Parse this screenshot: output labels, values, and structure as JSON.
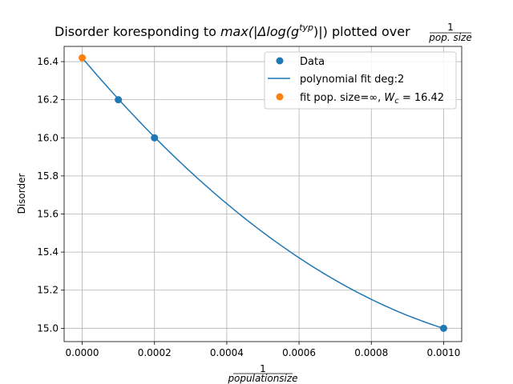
{
  "chart_data": {
    "type": "scatter",
    "title_prefix": "Disorder koresponding to ",
    "title_math": "max(|Δlog(g",
    "title_sup": "typ",
    "title_math_end": ")|)",
    "title_mid": " plotted over ",
    "title_frac_num": "1",
    "title_frac_den": "pop. size",
    "xlabel_num": "1",
    "xlabel_den": "populationsize",
    "ylabel": "Disorder",
    "xlim": [
      -5e-05,
      0.00105
    ],
    "ylim": [
      14.93,
      16.48
    ],
    "grid": true,
    "legend_position": "top-right",
    "x_ticks": [
      0.0,
      0.0002,
      0.0004,
      0.0006,
      0.0008,
      0.001
    ],
    "x_tick_labels": [
      "0.0000",
      "0.0002",
      "0.0004",
      "0.0006",
      "0.0008",
      "0.0010"
    ],
    "y_ticks": [
      15.0,
      15.2,
      15.4,
      15.6,
      15.8,
      16.0,
      16.2,
      16.4
    ],
    "y_tick_labels": [
      "15.0",
      "15.2",
      "15.4",
      "15.6",
      "15.8",
      "16.0",
      "16.2",
      "16.4"
    ],
    "series": [
      {
        "name": "Data",
        "kind": "scatter",
        "color": "#1f77b4",
        "x": [
          0.0001,
          0.0002,
          0.001
        ],
        "y": [
          16.2,
          16.0,
          15.0
        ]
      },
      {
        "name": "polynomial fit deg:2",
        "kind": "line",
        "color": "#1f77b4",
        "coefficients": [
          16.42,
          -2244,
          823500
        ]
      },
      {
        "name": "fit pop. size=∞, ",
        "name_math": "W",
        "name_sub": "c",
        "name_tail": " = 16.42",
        "kind": "scatter",
        "color": "#ff7f0e",
        "x": [
          0.0
        ],
        "y": [
          16.42
        ]
      }
    ]
  }
}
